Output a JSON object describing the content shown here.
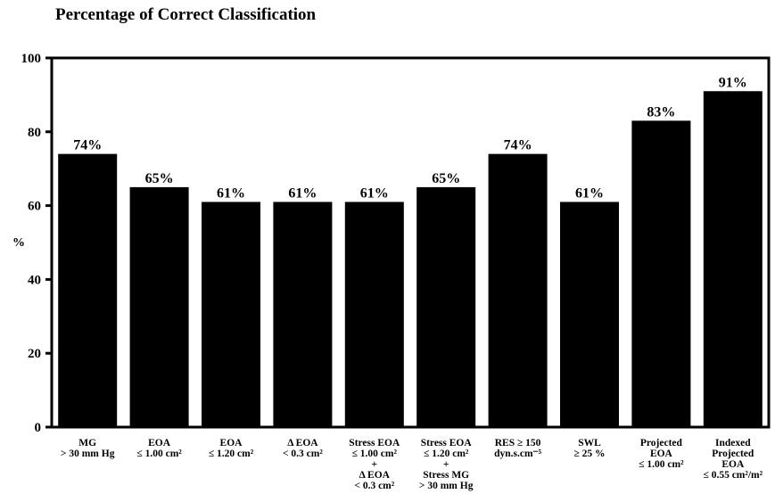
{
  "chart_data": {
    "type": "bar",
    "title": "Percentage of Correct Classification",
    "ylabel": "%",
    "xlabel": "",
    "ylim": [
      0,
      100
    ],
    "yticks": [
      0,
      20,
      40,
      60,
      80,
      100
    ],
    "grid": false,
    "bar_color": "#000000",
    "categories": [
      [
        "MG",
        "> 30 mm Hg"
      ],
      [
        "EOA",
        "≤ 1.00 cm²"
      ],
      [
        "EOA",
        "≤ 1.20 cm²"
      ],
      [
        "Δ EOA",
        "< 0.3 cm²"
      ],
      [
        "Stress EOA",
        "≤ 1.00 cm²",
        "+",
        "Δ EOA",
        "< 0.3 cm²"
      ],
      [
        "Stress EOA",
        "≤ 1.20 cm²",
        "+",
        "Stress MG",
        "> 30 mm Hg"
      ],
      [
        "RES ≥ 150",
        "dyn.s.cm⁻⁵"
      ],
      [
        "SWL",
        "≥ 25 %"
      ],
      [
        "Projected",
        "EOA",
        "≤ 1.00 cm²"
      ],
      [
        "Indexed",
        "Projected",
        "EOA",
        "≤ 0.55 cm²/m²"
      ]
    ],
    "values": [
      74,
      65,
      61,
      61,
      61,
      65,
      74,
      61,
      83,
      91
    ],
    "data_labels": [
      "74%",
      "65%",
      "61%",
      "61%",
      "61%",
      "65%",
      "74%",
      "61%",
      "83%",
      "91%"
    ]
  }
}
